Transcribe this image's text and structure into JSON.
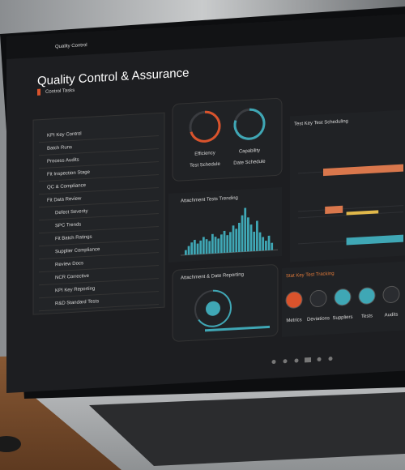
{
  "browser": {
    "address": "Quality Control"
  },
  "header": {
    "title": "Quality Control & Assurance",
    "tag": "Control Tasks"
  },
  "sidebar": {
    "items": [
      "KPI Key Control",
      "Batch Runs",
      "Process Audits",
      "Fit Inspection Stage",
      "QC & Compliance",
      "Fit Data Review",
      "Defect Severity",
      "SPC Trends",
      "Fit Batch Ratings",
      "Supplier Compliance",
      "Review Docs",
      "NCR Corrective",
      "KPI Key Reporting",
      "R&D Standard Tests"
    ]
  },
  "gauges": [
    {
      "label": "Efficiency",
      "sublabel": "Test Schedule",
      "value": 70,
      "color": "#d9532c"
    },
    {
      "label": "Capability",
      "sublabel": "Date Schedule",
      "value": 80,
      "color": "#3fa7b5"
    }
  ],
  "histogram": {
    "title": "Attachment Tests Trending",
    "color": "#3fa7b5",
    "values": [
      10,
      18,
      25,
      30,
      22,
      28,
      35,
      30,
      26,
      40,
      34,
      30,
      38,
      45,
      36,
      42,
      55,
      48,
      60,
      75,
      90,
      70,
      55,
      40,
      62,
      38,
      28,
      20,
      30,
      15
    ]
  },
  "gantt": {
    "title": "Test Key Test Scheduling",
    "bars": [
      {
        "start": 10,
        "end": 100,
        "color": "#d9774c"
      },
      {
        "start": 12,
        "end": 32,
        "color": "#d9774c"
      },
      {
        "start": 36,
        "end": 72,
        "color": "#e0b84a"
      },
      {
        "start": 36,
        "end": 100,
        "color": "#3fa7b5"
      }
    ]
  },
  "dial": {
    "title": "Attachment & Date Reporting",
    "value": 65
  },
  "tracking": {
    "title": "Stat Key Test Tracking",
    "items": [
      {
        "label": "Metrics",
        "color": "#d9532c"
      },
      {
        "label": "Deviations",
        "color": "#2a2c30"
      },
      {
        "label": "Suppliers",
        "color": "#3fa7b5"
      },
      {
        "label": "Tests",
        "color": "#3fa7b5"
      },
      {
        "label": "Audits",
        "color": "#2a2c30"
      }
    ]
  }
}
